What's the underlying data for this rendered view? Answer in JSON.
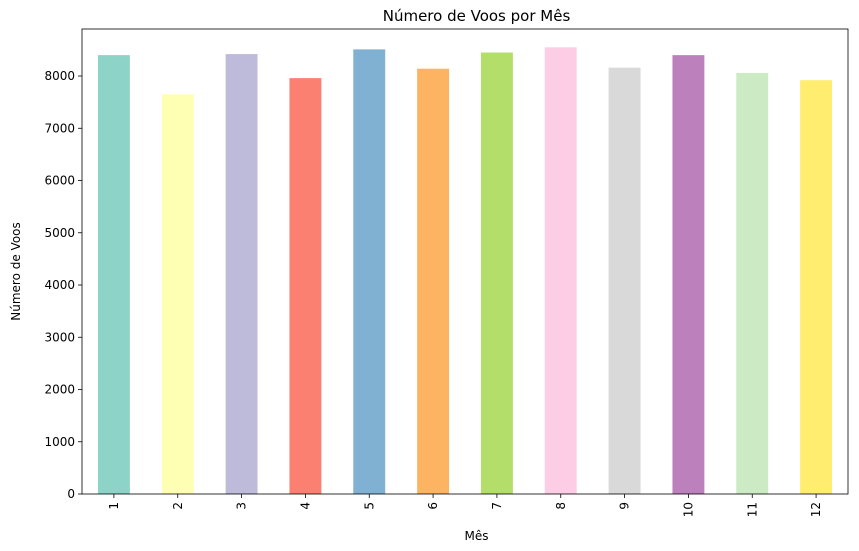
{
  "chart_data": {
    "type": "bar",
    "title": "Número de Voos por Mês",
    "xlabel": "Mês",
    "ylabel": "Número de Voos",
    "categories": [
      "1",
      "2",
      "3",
      "4",
      "5",
      "6",
      "7",
      "8",
      "9",
      "10",
      "11",
      "12"
    ],
    "values": [
      8400,
      7650,
      8420,
      7960,
      8510,
      8140,
      8450,
      8550,
      8160,
      8400,
      8060,
      7920
    ],
    "colors": [
      "#8dd3c7",
      "#ffffb3",
      "#bebada",
      "#fb8072",
      "#80b1d3",
      "#fdb462",
      "#b3de69",
      "#fccde5",
      "#d9d9d9",
      "#bc80bd",
      "#ccebc5",
      "#ffed6f"
    ],
    "ylim": [
      0,
      8900
    ],
    "yticks": [
      0,
      1000,
      2000,
      3000,
      4000,
      5000,
      6000,
      7000,
      8000
    ],
    "grid": false,
    "legend": false
  }
}
